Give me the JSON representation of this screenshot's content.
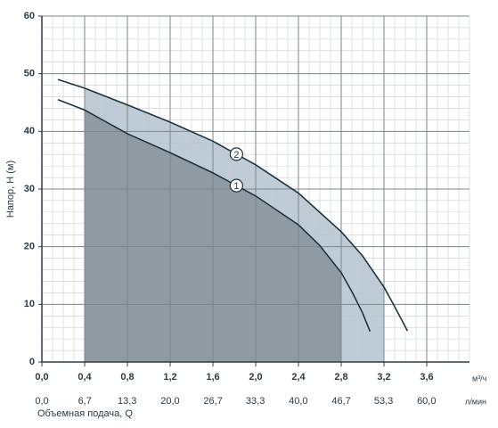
{
  "chart_data": {
    "type": "line",
    "y_label": "Напор, H (м)",
    "x_label": "Объемная подача, Q",
    "x_unit": "м³/ч",
    "x2_unit": "л/мин",
    "xlim": [
      0,
      4.0
    ],
    "xticks": [
      {
        "value": 0,
        "label": "0,0"
      },
      {
        "value": 0.4,
        "label": "0,4"
      },
      {
        "value": 0.8,
        "label": "0,8"
      },
      {
        "value": 1.2,
        "label": "1,2"
      },
      {
        "value": 1.6,
        "label": "1,6"
      },
      {
        "value": 2.0,
        "label": "2,0"
      },
      {
        "value": 2.4,
        "label": "2,4"
      },
      {
        "value": 2.8,
        "label": "2,8"
      },
      {
        "value": 3.2,
        "label": "3,2"
      },
      {
        "value": 3.6,
        "label": "3,6"
      }
    ],
    "x2lim": [
      0,
      66.7
    ],
    "x2ticks": [
      {
        "value": 0,
        "label": "0,0"
      },
      {
        "value": 6.7,
        "label": "6,7"
      },
      {
        "value": 13.3,
        "label": "13,3"
      },
      {
        "value": 20.0,
        "label": "20,0"
      },
      {
        "value": 26.7,
        "label": "26,7"
      },
      {
        "value": 33.3,
        "label": "33,3"
      },
      {
        "value": 40.0,
        "label": "40,0"
      },
      {
        "value": 46.7,
        "label": "46,7"
      },
      {
        "value": 53.3,
        "label": "53,3"
      },
      {
        "value": 60.0,
        "label": "60,0"
      }
    ],
    "ylim": [
      0,
      60
    ],
    "yticks": [
      0,
      10,
      20,
      30,
      40,
      50,
      60
    ],
    "grid": true,
    "series": [
      {
        "name": "1",
        "color": "#1f3441",
        "fill": "#8b959d",
        "range": [
          0.4,
          2.8
        ],
        "x": [
          0.15,
          0.4,
          0.8,
          1.2,
          1.6,
          2.0,
          2.4,
          2.6,
          2.8,
          2.9,
          3.0,
          3.07
        ],
        "values": [
          45.5,
          43.7,
          39.6,
          36.3,
          32.8,
          28.8,
          23.8,
          20.2,
          15.5,
          12.2,
          8.5,
          5.3
        ]
      },
      {
        "name": "2",
        "color": "#1f3441",
        "fill": "#b9c7d0",
        "range": [
          0.4,
          3.2
        ],
        "x": [
          0.15,
          0.4,
          0.8,
          1.2,
          1.6,
          2.0,
          2.4,
          2.8,
          3.0,
          3.2,
          3.3,
          3.42
        ],
        "values": [
          49,
          47.5,
          44.6,
          41.6,
          38.3,
          34.2,
          29.3,
          22.6,
          18.4,
          13,
          9.6,
          5.4
        ]
      }
    ]
  }
}
